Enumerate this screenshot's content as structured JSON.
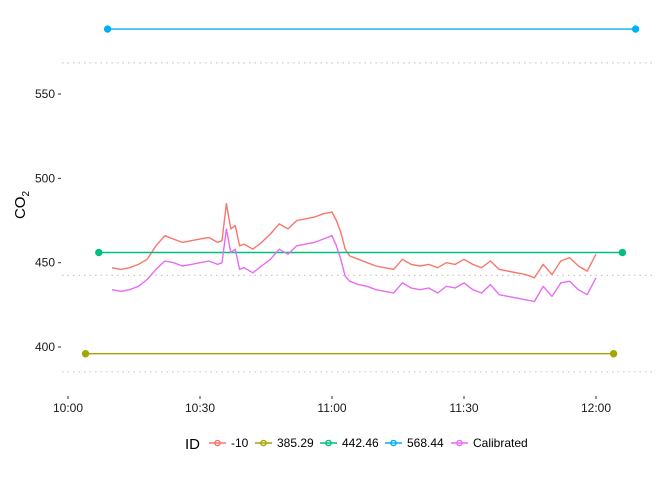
{
  "chart_data": {
    "type": "line",
    "xlabel": "",
    "ylabel": "CO",
    "ylabel_subscript": "2",
    "x_ticks": [
      "10:00",
      "10:30",
      "11:00",
      "11:30",
      "12:00"
    ],
    "y_ticks": [
      400,
      450,
      500,
      550
    ],
    "xlim": [
      "09:58",
      "12:10"
    ],
    "ylim": [
      377,
      593
    ],
    "grid": "dotted-horizontal-at-reference-levels",
    "reference_lines": [
      385.29,
      442.46,
      568.44
    ],
    "legend": {
      "title": "ID",
      "placement": "bottom",
      "entries": [
        "-10",
        "385.29",
        "442.46",
        "568.44",
        "Calibrated"
      ]
    },
    "series": [
      {
        "name": "-10",
        "color": "#F8766D",
        "x": [
          "10:10",
          "10:12",
          "10:14",
          "10:16",
          "10:18",
          "10:20",
          "10:22",
          "10:24",
          "10:26",
          "10:28",
          "10:30",
          "10:32",
          "10:34",
          "10:35",
          "10:36",
          "10:37",
          "10:38",
          "10:39",
          "10:40",
          "10:42",
          "10:44",
          "10:46",
          "10:48",
          "10:50",
          "10:52",
          "10:54",
          "10:56",
          "10:58",
          "11:00",
          "11:01",
          "11:02",
          "11:03",
          "11:04",
          "11:06",
          "11:08",
          "11:10",
          "11:12",
          "11:14",
          "11:16",
          "11:18",
          "11:20",
          "11:22",
          "11:24",
          "11:26",
          "11:28",
          "11:30",
          "11:32",
          "11:34",
          "11:36",
          "11:38",
          "11:40",
          "11:42",
          "11:44",
          "11:46",
          "11:48",
          "11:50",
          "11:52",
          "11:54",
          "11:56",
          "11:58",
          "12:00"
        ],
        "values": [
          447,
          446,
          447,
          449,
          452,
          460,
          466,
          464,
          462,
          463,
          464,
          465,
          462,
          463,
          485,
          470,
          472,
          460,
          461,
          458,
          462,
          467,
          473,
          470,
          475,
          476,
          477,
          479,
          480,
          475,
          468,
          458,
          454,
          452,
          450,
          448,
          447,
          446,
          452,
          449,
          448,
          449,
          447,
          450,
          449,
          452,
          449,
          447,
          451,
          446,
          445,
          444,
          443,
          441,
          449,
          443,
          451,
          453,
          448,
          445,
          455
        ]
      },
      {
        "name": "385.29",
        "color": "#A3A500",
        "x": [
          "10:04",
          "12:04"
        ],
        "values": [
          396,
          396
        ]
      },
      {
        "name": "442.46",
        "color": "#00BF7D",
        "x": [
          "10:07",
          "12:06"
        ],
        "values": [
          456,
          456
        ]
      },
      {
        "name": "568.44",
        "color": "#00B0F6",
        "x": [
          "10:09",
          "12:09"
        ],
        "values": [
          588.5,
          588.5
        ]
      },
      {
        "name": "Calibrated",
        "color": "#E76BF3",
        "x": [
          "10:10",
          "10:12",
          "10:14",
          "10:16",
          "10:18",
          "10:20",
          "10:22",
          "10:24",
          "10:26",
          "10:28",
          "10:30",
          "10:32",
          "10:34",
          "10:35",
          "10:36",
          "10:37",
          "10:38",
          "10:39",
          "10:40",
          "10:42",
          "10:44",
          "10:46",
          "10:48",
          "10:50",
          "10:52",
          "10:54",
          "10:56",
          "10:58",
          "11:00",
          "11:01",
          "11:02",
          "11:03",
          "11:04",
          "11:06",
          "11:08",
          "11:10",
          "11:12",
          "11:14",
          "11:16",
          "11:18",
          "11:20",
          "11:22",
          "11:24",
          "11:26",
          "11:28",
          "11:30",
          "11:32",
          "11:34",
          "11:36",
          "11:38",
          "11:40",
          "11:42",
          "11:44",
          "11:46",
          "11:48",
          "11:50",
          "11:52",
          "11:54",
          "11:56",
          "11:58",
          "12:00"
        ],
        "values": [
          434,
          433,
          434,
          436,
          440,
          446,
          451,
          450,
          448,
          449,
          450,
          451,
          449,
          450,
          470,
          456,
          458,
          446,
          447,
          444,
          448,
          452,
          458,
          455,
          460,
          461,
          462,
          464,
          466,
          460,
          452,
          442,
          439,
          437,
          436,
          434,
          433,
          432,
          438,
          435,
          434,
          435,
          432,
          436,
          435,
          438,
          434,
          432,
          437,
          431,
          430,
          429,
          428,
          427,
          436,
          430,
          438,
          439,
          434,
          431,
          441
        ]
      }
    ]
  }
}
